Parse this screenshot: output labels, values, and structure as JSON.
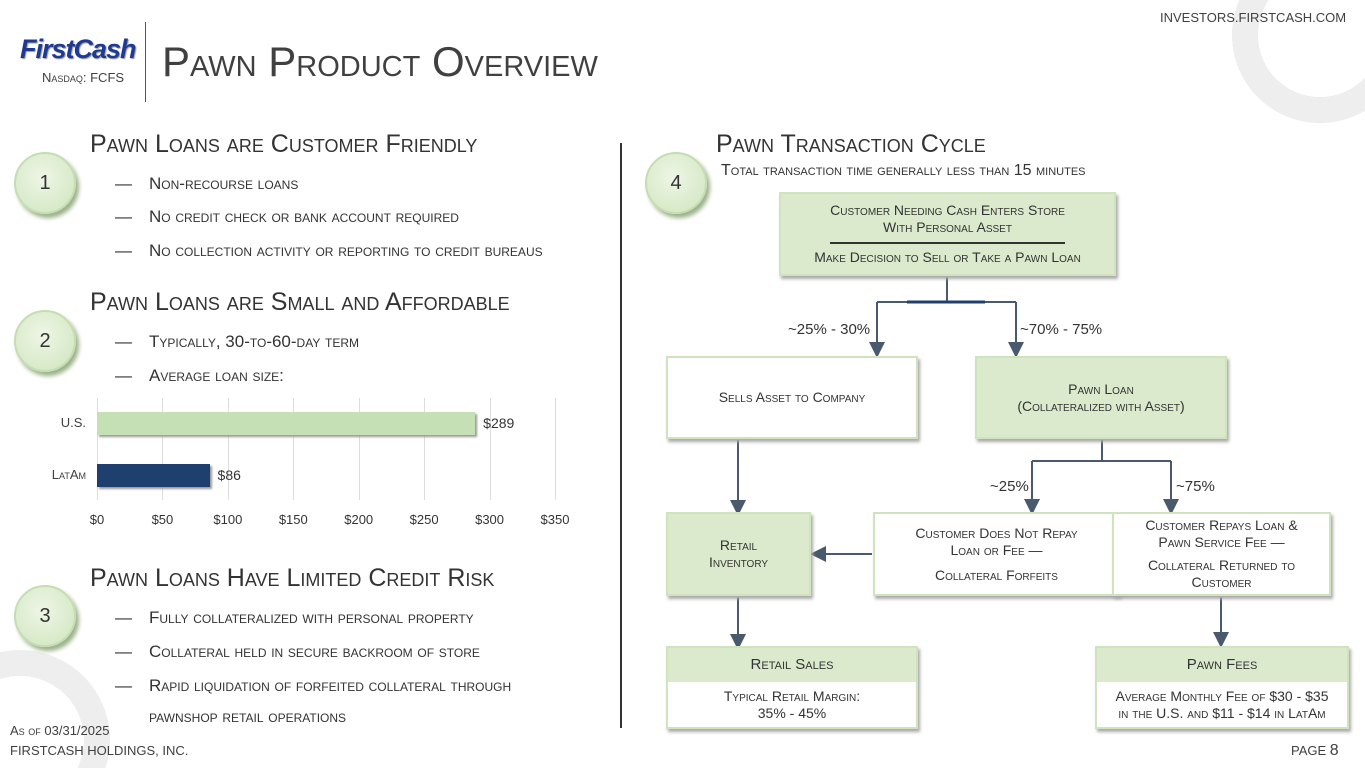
{
  "header": {
    "logo": "FirstCash",
    "ticker": "Nasdaq: FCFS",
    "title": "Pawn Product Overview",
    "site": "INVESTORS.FIRSTCASH.COM"
  },
  "sections": [
    {
      "number": "1",
      "title": "Pawn Loans are Customer Friendly",
      "bullets": [
        "Non-recourse loans",
        "No credit check or bank account required",
        "No collection activity or reporting to credit bureaus"
      ]
    },
    {
      "number": "2",
      "title": "Pawn Loans are Small and Affordable",
      "bullets": [
        "Typically, 30-to-60-day term",
        "Average loan size:"
      ]
    },
    {
      "number": "3",
      "title": "Pawn Loans Have Limited Credit Risk",
      "bullets": [
        "Fully collateralized with personal property",
        "Collateral held in secure backroom of store",
        "Rapid liquidation of forfeited collateral through",
        "pawnshop retail operations"
      ]
    }
  ],
  "chart_data": {
    "type": "bar",
    "orientation": "horizontal",
    "categories": [
      "U.S.",
      "LatAm"
    ],
    "values": [
      289,
      86
    ],
    "data_labels": [
      "$289",
      "$86"
    ],
    "colors": [
      "#c5e0b4",
      "#1f3f6e"
    ],
    "xlim": [
      0,
      350
    ],
    "xticks": [
      "$0",
      "$50",
      "$100",
      "$150",
      "$200",
      "$250",
      "$300",
      "$350"
    ],
    "grid": true
  },
  "cycle": {
    "number": "4",
    "title": "Pawn Transaction Cycle",
    "subtitle": "Total transaction time generally less than 15 minutes",
    "top_line1": "Customer Needing Cash Enters Store",
    "top_line2": "With Personal Asset",
    "top_line3": "Make Decision to Sell or Take a Pawn Loan",
    "pct_sell": "~25% - 30%",
    "pct_pawn": "~70% - 75%",
    "sells": "Sells Asset to Company",
    "pawn_line1": "Pawn Loan",
    "pawn_line2": "(Collateralized with Asset)",
    "pct_forfeit": "~25%",
    "pct_repay": "~75%",
    "inventory_line1": "Retail",
    "inventory_line2": "Inventory",
    "forfeit_line1": "Customer Does Not Repay",
    "forfeit_line2": "Loan or Fee —",
    "forfeit_line3": "Collateral Forfeits",
    "repay_line1": "Customer Repays Loan &",
    "repay_line2": "Pawn Service Fee —",
    "repay_line3": "Collateral Returned to",
    "repay_line4": "Customer",
    "sales_title": "Retail Sales",
    "sales_line1": "Typical Retail Margin:",
    "sales_line2": "35% - 45%",
    "fees_title": "Pawn Fees",
    "fees_line1": "Average Monthly Fee of $30 - $35",
    "fees_line2": "in the U.S. and $11 - $14 in LatAm"
  },
  "footer": {
    "asof": "As of 03/31/2025",
    "company": "FIRSTCASH HOLDINGS, INC.",
    "page_label": "PAGE",
    "page": "8"
  },
  "colors": {
    "green": "#dbeacd",
    "navy": "#1f3f6e",
    "line": "#4a5a6e"
  }
}
